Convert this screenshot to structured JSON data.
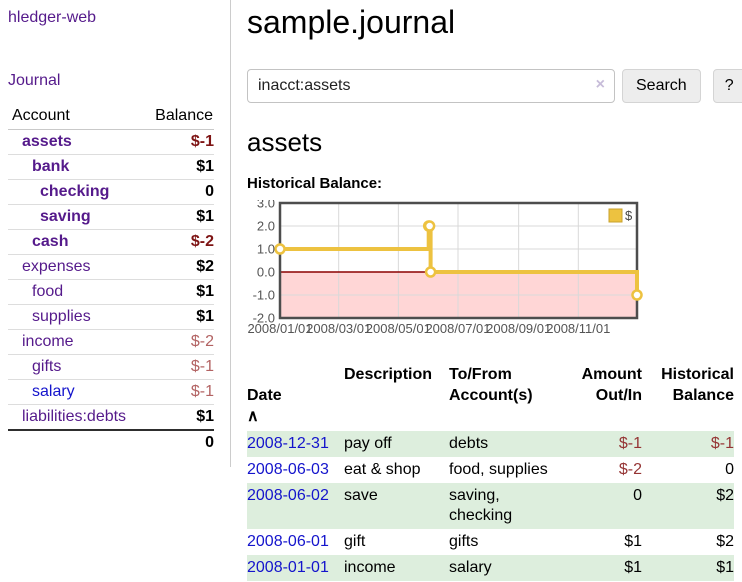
{
  "app": {
    "brand": "hledger-web",
    "nav_journal": "Journal"
  },
  "colors": {
    "link_purple": "#551a8b",
    "link_blue": "#1414cc",
    "negative_strong": "#7e1414",
    "negative_soft": "#b26262",
    "negative_table": "#953434",
    "row_stripe_green": "#ddeedd",
    "series_gold": "#edc240",
    "negative_region_pink": "#ffd6d6",
    "zero_line_red": "#8b0000"
  },
  "sidebar": {
    "header": {
      "account": "Account",
      "balance": "Balance"
    },
    "accounts": [
      {
        "name": "assets",
        "depth": 1,
        "balance": "$-1",
        "bold": true,
        "negative": "strong"
      },
      {
        "name": "bank",
        "depth": 2,
        "balance": "$1",
        "bold": true
      },
      {
        "name": "checking",
        "depth": 3,
        "balance": "0",
        "bold": true
      },
      {
        "name": "saving",
        "depth": 3,
        "balance": "$1",
        "bold": true
      },
      {
        "name": "cash",
        "depth": 2,
        "balance": "$-2",
        "bold": true,
        "negative": "strong"
      },
      {
        "name": "expenses",
        "depth": 1,
        "balance": "$2"
      },
      {
        "name": "food",
        "depth": 2,
        "balance": "$1"
      },
      {
        "name": "supplies",
        "depth": 2,
        "balance": "$1"
      },
      {
        "name": "income",
        "depth": 1,
        "balance": "$-2",
        "negative": "soft"
      },
      {
        "name": "gifts",
        "depth": 2,
        "balance": "$-1",
        "negative": "soft"
      },
      {
        "name": "salary",
        "depth": 2,
        "balance": "$-1",
        "negative": "soft",
        "link_blue": true
      },
      {
        "name": "liabilities:debts",
        "depth": 1,
        "balance": "$1"
      }
    ],
    "total": "0"
  },
  "header": {
    "title": "sample.journal"
  },
  "search": {
    "value": "inacct:assets",
    "clear_icon": "×",
    "button_label": "Search",
    "help_label": "?"
  },
  "account_page": {
    "heading": "assets",
    "chart_label": "Historical Balance:"
  },
  "chart_data": {
    "type": "line",
    "step": true,
    "title": "Historical Balance:",
    "series": [
      {
        "name": "$",
        "color": "#edc240",
        "points": [
          [
            "2008-01-01",
            1
          ],
          [
            "2008-06-01",
            2
          ],
          [
            "2008-06-02",
            2
          ],
          [
            "2008-06-03",
            0
          ],
          [
            "2008-12-31",
            -1
          ]
        ]
      }
    ],
    "xlim": [
      "2008-01-01",
      "2008-12-31"
    ],
    "ylim": [
      -2,
      3
    ],
    "y_ticks": [
      3,
      2,
      1,
      0,
      -1,
      -2
    ],
    "x_ticks": [
      {
        "label": "2008/01/01",
        "date": "2008-01-01"
      },
      {
        "label": "2008/03/01",
        "date": "2008-03-01"
      },
      {
        "label": "2008/05/01",
        "date": "2008-05-01"
      },
      {
        "label": "2008/07/01",
        "date": "2008-07-01"
      },
      {
        "label": "2008/09/01",
        "date": "2008-09-01"
      },
      {
        "label": "2008/11/01",
        "date": "2008-11-01"
      }
    ],
    "legend": {
      "label": "$",
      "position": "top-right"
    },
    "grid": true,
    "colors": {
      "series": "#edc240",
      "point_fill": "#ffffff",
      "grid": "#d9d9d9",
      "border": "#4d4d4d",
      "negative_region": "#ffd6d6",
      "zero_line": "#8b0000",
      "tick_text": "#545454",
      "legend_swatch_border": "#c8a22c"
    }
  },
  "register": {
    "sort_indicator": "∧",
    "columns": [
      {
        "label": "Date"
      },
      {
        "label": "Description"
      },
      {
        "label": "To/From\nAccount(s)"
      },
      {
        "label": "Amount\nOut/In",
        "align": "right"
      },
      {
        "label": "Historical\nBalance",
        "align": "right"
      }
    ],
    "rows": [
      {
        "date": "2008-12-31",
        "description": "pay off",
        "accounts": "debts",
        "amount": "$-1",
        "amount_negative": true,
        "balance": "$-1",
        "balance_negative": true
      },
      {
        "date": "2008-06-03",
        "description": "eat & shop",
        "accounts": "food, supplies",
        "amount": "$-2",
        "amount_negative": true,
        "balance": "0",
        "balance_negative": false
      },
      {
        "date": "2008-06-02",
        "description": "save",
        "accounts": "saving, checking",
        "amount": "0",
        "amount_negative": false,
        "balance": "$2",
        "balance_negative": false
      },
      {
        "date": "2008-06-01",
        "description": "gift",
        "accounts": "gifts",
        "amount": "$1",
        "amount_negative": false,
        "balance": "$2",
        "balance_negative": false
      },
      {
        "date": "2008-01-01",
        "description": "income",
        "accounts": "salary",
        "amount": "$1",
        "amount_negative": false,
        "balance": "$1",
        "balance_negative": false
      }
    ]
  }
}
